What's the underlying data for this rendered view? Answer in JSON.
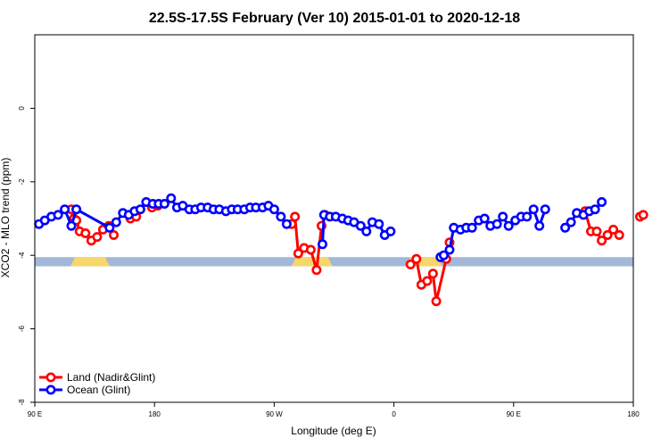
{
  "chart_data": {
    "type": "line",
    "title": "22.5S-17.5S February (Ver 10)   2015-01-01 to 2020-12-18",
    "xlabel": "Longitude (deg E)",
    "ylabel": "XCO2 - MLO trend (ppm)",
    "xlim": [
      90,
      450
    ],
    "ylim": [
      -8,
      2
    ],
    "x_ticks": [
      {
        "value": 90,
        "label": "90 E"
      },
      {
        "value": 162,
        "label": "180"
      },
      {
        "value": 234,
        "label": "90 W"
      },
      {
        "value": 306,
        "label": "0"
      },
      {
        "value": 378,
        "label": "90 E"
      },
      {
        "value": 450,
        "label": "180"
      }
    ],
    "y_ticks": [
      {
        "value": -8,
        "label": "-8"
      },
      {
        "value": -6,
        "label": "-6"
      },
      {
        "value": -4,
        "label": "-4"
      },
      {
        "value": -2,
        "label": "-2"
      },
      {
        "value": 0,
        "label": "0"
      }
    ],
    "legend_position": "bottom-left",
    "surface_band": {
      "y_top": -4.05,
      "y_bottom": -4.3,
      "ocean_color": "#a3b8d8",
      "land_color": "#f7d66a",
      "land_segments": [
        [
          111.5,
          135
        ],
        [
          244.5,
          269
        ],
        [
          313.5,
          335
        ],
        [
          459,
          476.5
        ]
      ]
    },
    "series": [
      {
        "name": "Land (Nadir&Glint)",
        "color": "#ff0000",
        "segments": [
          [
            [
              112,
              -2.75
            ],
            [
              113.5,
              -3.0
            ],
            [
              115,
              -3.05
            ],
            [
              117,
              -3.35
            ],
            [
              120.5,
              -3.4
            ],
            [
              124,
              -3.6
            ],
            [
              127.5,
              -3.5
            ],
            [
              131,
              -3.3
            ],
            [
              134.5,
              -3.2
            ],
            [
              137.5,
              -3.45
            ]
          ],
          [
            [
              147.5,
              -3.0
            ],
            [
              151,
              -2.95
            ]
          ],
          [
            [
              160.5,
              -2.7
            ],
            [
              164,
              -2.65
            ]
          ],
          [
            [
              244.5,
              -3.15
            ],
            [
              246.5,
              -2.95
            ],
            [
              248.5,
              -3.95
            ],
            [
              252,
              -3.8
            ],
            [
              256,
              -3.85
            ],
            [
              259.5,
              -4.4
            ],
            [
              262.5,
              -3.2
            ],
            [
              264.5,
              -2.9
            ]
          ],
          [
            [
              316,
              -4.25
            ],
            [
              319.5,
              -4.1
            ],
            [
              322.5,
              -4.8
            ],
            [
              326,
              -4.7
            ],
            [
              329.5,
              -4.5
            ],
            [
              331.5,
              -5.25
            ],
            [
              337.5,
              -4.1
            ],
            [
              339.5,
              -3.65
            ]
          ],
          [
            [
              421,
              -2.8
            ],
            [
              424.5,
              -3.35
            ],
            [
              428,
              -3.35
            ],
            [
              431,
              -3.6
            ],
            [
              434.5,
              -3.45
            ],
            [
              438,
              -3.3
            ],
            [
              441.5,
              -3.45
            ]
          ],
          [
            [
              454,
              -2.95
            ],
            [
              456,
              -2.9
            ]
          ]
        ]
      },
      {
        "name": "Ocean (Glint)",
        "color": "#0000ff",
        "segments": [
          [
            [
              92.5,
              -3.15
            ],
            [
              96,
              -3.05
            ],
            [
              100,
              -2.95
            ],
            [
              104,
              -2.9
            ],
            [
              108,
              -2.75
            ],
            [
              112,
              -3.2
            ],
            [
              115,
              -2.75
            ],
            [
              135,
              -3.25
            ],
            [
              139,
              -3.1
            ],
            [
              143,
              -2.85
            ],
            [
              146.5,
              -2.9
            ],
            [
              150,
              -2.8
            ],
            [
              153.5,
              -2.75
            ],
            [
              157,
              -2.55
            ],
            [
              161,
              -2.6
            ],
            [
              164.5,
              -2.6
            ],
            [
              168,
              -2.6
            ],
            [
              172,
              -2.45
            ],
            [
              175.5,
              -2.7
            ],
            [
              179,
              -2.65
            ],
            [
              183,
              -2.75
            ],
            [
              186.5,
              -2.75
            ],
            [
              190,
              -2.7
            ],
            [
              194,
              -2.7
            ],
            [
              197.5,
              -2.75
            ],
            [
              201,
              -2.75
            ],
            [
              205,
              -2.8
            ],
            [
              208.5,
              -2.75
            ],
            [
              212,
              -2.75
            ],
            [
              216,
              -2.75
            ],
            [
              219.5,
              -2.7
            ],
            [
              223,
              -2.7
            ],
            [
              227,
              -2.7
            ],
            [
              230.5,
              -2.65
            ],
            [
              234,
              -2.75
            ],
            [
              238,
              -2.95
            ],
            [
              241.5,
              -3.15
            ]
          ],
          [
            [
              263,
              -3.7
            ],
            [
              264,
              -2.9
            ],
            [
              267.5,
              -2.95
            ],
            [
              271,
              -2.95
            ],
            [
              275,
              -3.0
            ],
            [
              278.5,
              -3.05
            ],
            [
              282,
              -3.1
            ],
            [
              286,
              -3.2
            ],
            [
              289.5,
              -3.35
            ],
            [
              293,
              -3.1
            ],
            [
              297,
              -3.15
            ],
            [
              300.5,
              -3.45
            ],
            [
              304,
              -3.35
            ]
          ],
          [
            [
              334,
              -4.05
            ],
            [
              336,
              -4.0
            ],
            [
              339.5,
              -3.85
            ],
            [
              342,
              -3.25
            ],
            [
              346,
              -3.3
            ],
            [
              349.5,
              -3.25
            ],
            [
              353,
              -3.25
            ],
            [
              357,
              -3.05
            ],
            [
              360.5,
              -3.0
            ],
            [
              364,
              -3.2
            ],
            [
              368,
              -3.15
            ],
            [
              371.5,
              -2.95
            ],
            [
              375,
              -3.2
            ],
            [
              379,
              -3.05
            ],
            [
              382.5,
              -2.95
            ],
            [
              386,
              -2.95
            ],
            [
              390,
              -2.75
            ],
            [
              393.5,
              -3.2
            ],
            [
              397,
              -2.75
            ]
          ],
          [
            [
              409,
              -3.25
            ],
            [
              412.5,
              -3.1
            ],
            [
              416,
              -2.85
            ],
            [
              420,
              -2.9
            ],
            [
              423.5,
              -2.8
            ],
            [
              427,
              -2.75
            ],
            [
              431,
              -2.55
            ]
          ]
        ]
      }
    ]
  }
}
